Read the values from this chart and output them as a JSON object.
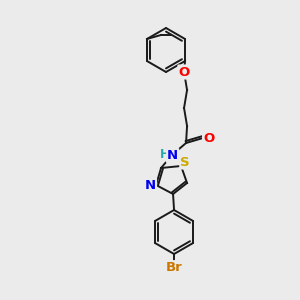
{
  "background_color": "#ebebeb",
  "bond_color": "#1a1a1a",
  "atom_colors": {
    "O": "#ff0000",
    "N": "#0000ee",
    "S": "#ccaa00",
    "Br": "#cc7700",
    "H": "#22aaaa",
    "C": "#1a1a1a"
  },
  "bond_lw": 1.4,
  "font_size": 8.5
}
